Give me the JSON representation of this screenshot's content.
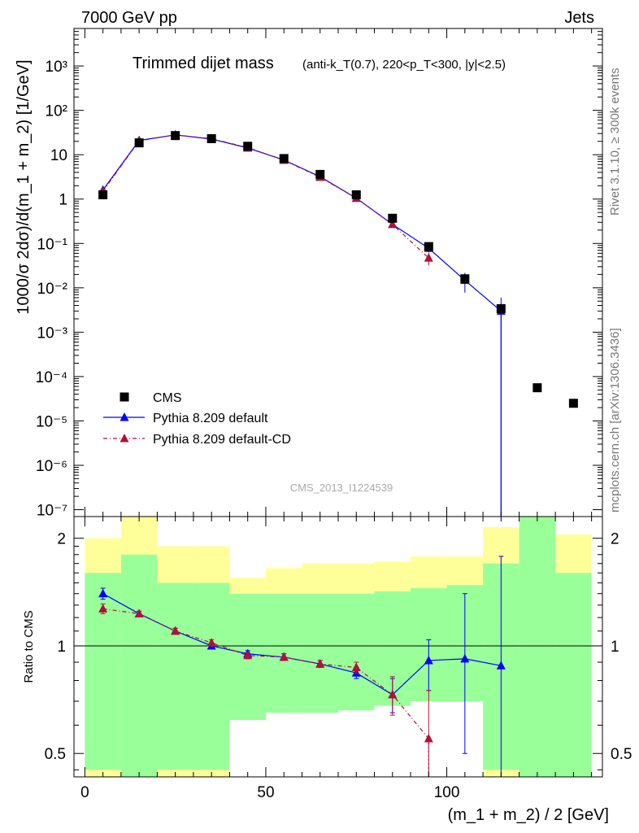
{
  "header": {
    "left": "7000 GeV pp",
    "right": "Jets"
  },
  "side_labels": {
    "rivet": "Rivet 3.1.10, ≥ 300k events",
    "mcplots": "mcplots.cern.ch [arXiv:1306.3436]"
  },
  "watermark": "CMS_2013_I1224539",
  "chart_data": [
    {
      "type": "line",
      "panel": "main",
      "title": "Trimmed dijet mass",
      "title_selection": "(anti-k_T(0.7), 220<p_T<300, |y|<2.5)",
      "ylabel": "1000/σ 2dσ)/d(m_1 + m_2) [1/GeV]",
      "yscale": "log",
      "xlim": [
        -3,
        143
      ],
      "ylim": [
        7e-08,
        7000
      ],
      "legend_position": "bottom-left",
      "y_tick_labels": [
        "10⁻⁷",
        "10⁻⁶",
        "10⁻⁵",
        "10⁻⁴",
        "10⁻³",
        "10⁻²",
        "10⁻¹",
        "1",
        "10",
        "10²",
        "10³"
      ],
      "series": [
        {
          "name": "CMS",
          "color": "#000000",
          "marker": "square",
          "x": [
            5,
            15,
            25,
            35,
            45,
            55,
            65,
            75,
            85,
            95,
            105,
            115,
            125,
            135
          ],
          "y": [
            1.25,
            18.5,
            27,
            23,
            15.5,
            8.2,
            3.6,
            1.25,
            0.37,
            0.085,
            0.016,
            0.0034,
            5.6e-05,
            2.5e-05
          ]
        },
        {
          "name": "Pythia 8.209 default",
          "color": "#0000ff",
          "marker": "triangle",
          "line": "solid",
          "x": [
            5,
            15,
            25,
            35,
            45,
            55,
            65,
            75,
            85,
            95,
            105,
            115
          ],
          "y": [
            1.6,
            21,
            28,
            22.5,
            14.2,
            7.6,
            3.2,
            1.05,
            0.27,
            0.078,
            0.0148,
            0.003
          ],
          "err_low": [
            0.1,
            0.5,
            0.5,
            0.4,
            0.3,
            0.2,
            0.1,
            0.05,
            0.02,
            0.015,
            0.007,
            0.003
          ],
          "err_high": [
            0.1,
            0.5,
            0.5,
            0.4,
            0.3,
            0.2,
            0.1,
            0.05,
            0.02,
            0.015,
            0.007,
            0.003
          ]
        },
        {
          "name": "Pythia 8.209 default-CD",
          "color": "#b0103a",
          "marker": "triangle",
          "line": "dash-dot",
          "x": [
            5,
            15,
            25,
            35,
            45,
            55,
            65,
            75,
            85,
            95
          ],
          "y": [
            1.5,
            20.5,
            28,
            23,
            14.5,
            7.5,
            3.1,
            1.05,
            0.27,
            0.047
          ],
          "err_low": [
            0.08,
            0.5,
            0.5,
            0.4,
            0.3,
            0.2,
            0.1,
            0.05,
            0.03,
            0.015
          ],
          "err_high": [
            0.08,
            0.5,
            0.5,
            0.4,
            0.3,
            0.2,
            0.1,
            0.05,
            0.03,
            0.015
          ]
        }
      ]
    },
    {
      "type": "line",
      "panel": "ratio",
      "xlabel": "(m_1 + m_2) / 2 [GeV]",
      "ylabel": "Ratio to CMS",
      "yscale": "log",
      "ylim": [
        0.43,
        2.3
      ],
      "xlim": [
        -3,
        143
      ],
      "x_ticks": [
        0,
        50,
        100
      ],
      "y_ticks": [
        0.5,
        1,
        2
      ],
      "reference_line": 1,
      "bands": {
        "bin_edges": [
          0,
          10,
          20,
          30,
          40,
          50,
          60,
          70,
          80,
          90,
          100,
          110,
          120,
          130,
          140
        ],
        "green_low": [
          0.45,
          0.3,
          0.45,
          0.45,
          0.62,
          0.65,
          0.65,
          0.66,
          0.68,
          0.7,
          0.7,
          0.45,
          0.3,
          0.3
        ],
        "green_high": [
          1.6,
          1.8,
          1.5,
          1.5,
          1.4,
          1.4,
          1.4,
          1.4,
          1.42,
          1.45,
          1.48,
          1.7,
          2.5,
          1.6
        ],
        "yellow_low": [
          0.3,
          0.3,
          0.3,
          0.3,
          0.83,
          0.8,
          0.8,
          0.8,
          0.77,
          0.75,
          0.7,
          0.3,
          0.3,
          0.3
        ],
        "yellow_high": [
          2.0,
          2.5,
          1.9,
          1.9,
          1.55,
          1.65,
          1.7,
          1.7,
          1.72,
          1.78,
          1.78,
          2.15,
          2.5,
          2.05
        ]
      },
      "series": [
        {
          "name": "Pythia 8.209 default",
          "color": "#0000ff",
          "x": [
            5,
            15,
            25,
            35,
            45,
            55,
            65,
            75,
            85,
            95,
            105,
            115
          ],
          "y": [
            1.4,
            1.23,
            1.1,
            1.0,
            0.95,
            0.93,
            0.89,
            0.84,
            0.73,
            0.91,
            0.92,
            0.88
          ],
          "err_low": [
            0.05,
            0.02,
            0.02,
            0.02,
            0.02,
            0.02,
            0.02,
            0.03,
            0.08,
            0.16,
            0.42,
            0.5
          ],
          "err_high": [
            0.05,
            0.02,
            0.02,
            0.02,
            0.02,
            0.02,
            0.02,
            0.03,
            0.08,
            0.13,
            0.48,
            0.9
          ]
        },
        {
          "name": "Pythia 8.209 default-CD",
          "color": "#b0103a",
          "x": [
            5,
            15,
            25,
            35,
            45,
            55,
            65,
            75,
            85,
            95
          ],
          "y": [
            1.27,
            1.23,
            1.1,
            1.02,
            0.94,
            0.93,
            0.89,
            0.87,
            0.73,
            0.55
          ],
          "err_low": [
            0.04,
            0.02,
            0.02,
            0.02,
            0.02,
            0.02,
            0.02,
            0.03,
            0.09,
            0.15
          ],
          "err_high": [
            0.04,
            0.02,
            0.02,
            0.02,
            0.02,
            0.02,
            0.02,
            0.03,
            0.09,
            0.2
          ]
        }
      ]
    }
  ]
}
